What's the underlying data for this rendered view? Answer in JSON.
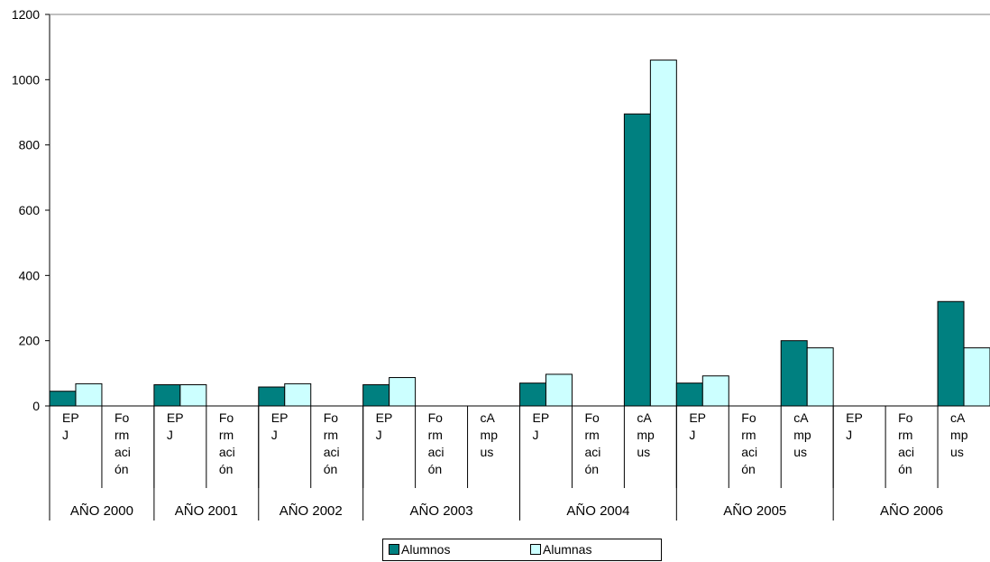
{
  "chart_data": {
    "type": "bar",
    "categories": [
      {
        "group": "AÑO 2000",
        "label": [
          "EP",
          "J"
        ]
      },
      {
        "group": "AÑO 2000",
        "label": [
          "Fo",
          "rm",
          "aci",
          "ón"
        ]
      },
      {
        "group": "AÑO 2001",
        "label": [
          "EP",
          "J"
        ]
      },
      {
        "group": "AÑO 2001",
        "label": [
          "Fo",
          "rm",
          "aci",
          "ón"
        ]
      },
      {
        "group": "AÑO 2002",
        "label": [
          "EP",
          "J"
        ]
      },
      {
        "group": "AÑO 2002",
        "label": [
          "Fo",
          "rm",
          "aci",
          "ón"
        ]
      },
      {
        "group": "AÑO 2003",
        "label": [
          "EP",
          "J"
        ]
      },
      {
        "group": "AÑO 2003",
        "label": [
          "Fo",
          "rm",
          "aci",
          "ón"
        ]
      },
      {
        "group": "AÑO 2003",
        "label": [
          "cA",
          "mp",
          "us"
        ]
      },
      {
        "group": "AÑO 2004",
        "label": [
          "EP",
          "J"
        ]
      },
      {
        "group": "AÑO 2004",
        "label": [
          "Fo",
          "rm",
          "aci",
          "ón"
        ]
      },
      {
        "group": "AÑO 2004",
        "label": [
          "cA",
          "mp",
          "us"
        ]
      },
      {
        "group": "AÑO 2005",
        "label": [
          "EP",
          "J"
        ]
      },
      {
        "group": "AÑO 2005",
        "label": [
          "Fo",
          "rm",
          "aci",
          "ón"
        ]
      },
      {
        "group": "AÑO 2005",
        "label": [
          "cA",
          "mp",
          "us"
        ]
      },
      {
        "group": "AÑO 2006",
        "label": [
          "EP",
          "J"
        ]
      },
      {
        "group": "AÑO 2006",
        "label": [
          "Fo",
          "rm",
          "aci",
          "ón"
        ]
      },
      {
        "group": "AÑO 2006",
        "label": [
          "cA",
          "mp",
          "us"
        ]
      }
    ],
    "groups": [
      "AÑO 2000",
      "AÑO 2001",
      "AÑO 2002",
      "AÑO 2003",
      "AÑO 2004",
      "AÑO 2005",
      "AÑO 2006"
    ],
    "series": [
      {
        "name": "Alumnos",
        "color": "#008080",
        "values": [
          45,
          0,
          65,
          0,
          58,
          0,
          65,
          0,
          0,
          70,
          0,
          895,
          70,
          0,
          200,
          0,
          0,
          320
        ]
      },
      {
        "name": "Alumnas",
        "color": "#CCFFFF",
        "values": [
          68,
          0,
          65,
          0,
          68,
          0,
          87,
          0,
          0,
          97,
          0,
          1060,
          92,
          0,
          178,
          0,
          0,
          178
        ]
      }
    ],
    "ylim": [
      0,
      1200
    ],
    "yticks": [
      0,
      200,
      400,
      600,
      800,
      1000,
      1200
    ],
    "grid": false,
    "legend_position": "bottom"
  }
}
